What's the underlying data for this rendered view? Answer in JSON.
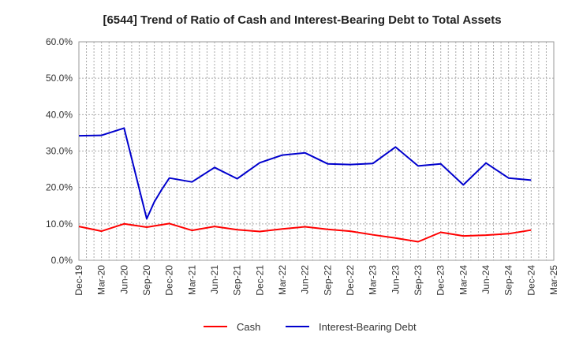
{
  "chart_data": {
    "type": "line",
    "title": "[6544]  Trend of Ratio of Cash and Interest-Bearing Debt to Total Assets",
    "xlabel": "",
    "ylabel": "",
    "x_ticks": [
      "Dec-19",
      "Mar-20",
      "Jun-20",
      "Sep-20",
      "Dec-20",
      "Mar-21",
      "Jun-21",
      "Sep-21",
      "Dec-21",
      "Mar-22",
      "Jun-22",
      "Sep-22",
      "Dec-22",
      "Mar-23",
      "Jun-23",
      "Sep-23",
      "Dec-23",
      "Mar-24",
      "Jun-24",
      "Sep-24",
      "Dec-24",
      "Mar-25"
    ],
    "y_ticks": [
      "0.0%",
      "10.0%",
      "20.0%",
      "30.0%",
      "40.0%",
      "50.0%",
      "60.0%"
    ],
    "ylim": [
      0,
      60
    ],
    "grid": true,
    "legend_position": "bottom",
    "series": [
      {
        "name": "Cash",
        "color": "#ff0000",
        "points": [
          [
            0,
            9.3
          ],
          [
            1,
            8.0
          ],
          [
            2,
            10.0
          ],
          [
            3,
            9.1
          ],
          [
            4,
            10.1
          ],
          [
            5,
            8.2
          ],
          [
            6,
            9.3
          ],
          [
            7,
            8.4
          ],
          [
            8,
            7.9
          ],
          [
            9,
            8.6
          ],
          [
            10,
            9.2
          ],
          [
            11,
            8.5
          ],
          [
            12,
            8.0
          ],
          [
            13,
            7.0
          ],
          [
            14,
            6.1
          ],
          [
            15,
            5.1
          ],
          [
            16,
            7.7
          ],
          [
            17,
            6.7
          ],
          [
            18,
            6.9
          ],
          [
            19,
            7.3
          ],
          [
            20,
            8.3
          ]
        ]
      },
      {
        "name": "Interest-Bearing Debt",
        "color": "#0000cd",
        "points": [
          [
            0,
            34.2
          ],
          [
            1,
            34.3
          ],
          [
            2,
            36.3
          ],
          [
            3,
            11.4
          ],
          [
            3.33,
            16.0
          ],
          [
            3.67,
            19.5
          ],
          [
            4,
            22.6
          ],
          [
            5,
            21.5
          ],
          [
            6,
            25.5
          ],
          [
            7,
            22.4
          ],
          [
            8,
            26.8
          ],
          [
            9,
            28.9
          ],
          [
            10,
            29.5
          ],
          [
            11,
            26.5
          ],
          [
            12,
            26.3
          ],
          [
            13,
            26.6
          ],
          [
            14,
            31.1
          ],
          [
            15,
            25.9
          ],
          [
            16,
            26.5
          ],
          [
            17,
            20.7
          ],
          [
            18,
            26.7
          ],
          [
            19,
            22.6
          ],
          [
            20,
            22.0
          ]
        ]
      }
    ]
  }
}
